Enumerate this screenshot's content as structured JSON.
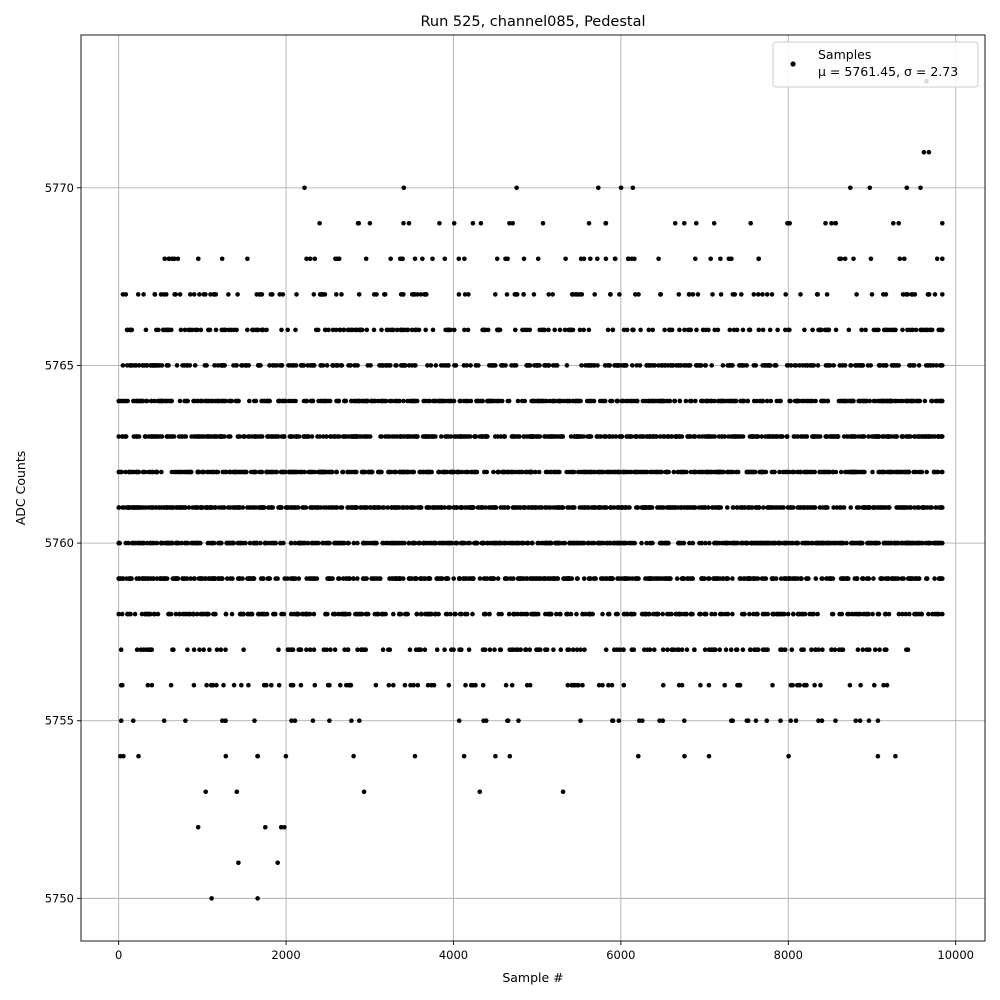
{
  "chart_data": {
    "type": "scatter",
    "title": "Run 525, channel085, Pedestal",
    "xlabel": "Sample #",
    "ylabel": "ADC Counts",
    "xlim": [
      -450,
      10350
    ],
    "ylim": [
      5748.8,
      5774.3
    ],
    "xticks": [
      0,
      2000,
      4000,
      6000,
      8000,
      10000
    ],
    "yticks": [
      5750,
      5755,
      5760,
      5765,
      5770
    ],
    "grid": true,
    "legend": {
      "placement": "top-right",
      "entries": [
        {
          "name": "Samples",
          "stats": "μ = 5761.45, σ = 2.73"
        }
      ]
    },
    "series": [
      {
        "name": "Samples",
        "color": "#000000",
        "marker": "circle",
        "n_samples": 9850,
        "level_ranges": [
          {
            "y": 5750,
            "x": [
              1110,
              1660
            ]
          },
          {
            "y": 5751,
            "x": [
              1430,
              1900
            ]
          },
          {
            "y": 5752,
            "x": [
              950,
              1980
            ]
          },
          {
            "y": 5753,
            "x": [
              1040,
              5310
            ]
          },
          {
            "y": 5754,
            "x": [
              20,
              9280
            ]
          },
          {
            "y": 5755,
            "x": [
              30,
              9070
            ]
          },
          {
            "y": 5756,
            "x": [
              30,
              9180
            ]
          },
          {
            "y": 5757,
            "x": [
              30,
              9430
            ]
          },
          {
            "y": 5758,
            "x": [
              0,
              9840
            ]
          },
          {
            "y": 5759,
            "x": [
              0,
              9840
            ]
          },
          {
            "y": 5760,
            "x": [
              0,
              9840
            ]
          },
          {
            "y": 5761,
            "x": [
              0,
              9840
            ]
          },
          {
            "y": 5762,
            "x": [
              0,
              9840
            ]
          },
          {
            "y": 5763,
            "x": [
              0,
              9840
            ]
          },
          {
            "y": 5764,
            "x": [
              0,
              9840
            ]
          },
          {
            "y": 5765,
            "x": [
              50,
              9840
            ]
          },
          {
            "y": 5766,
            "x": [
              100,
              9840
            ]
          },
          {
            "y": 5767,
            "x": [
              50,
              9840
            ]
          },
          {
            "y": 5768,
            "x": [
              550,
              9840
            ]
          },
          {
            "y": 5769,
            "x": [
              2400,
              9840
            ]
          },
          {
            "y": 5770,
            "x": [
              2220,
              9580
            ]
          },
          {
            "y": 5771,
            "x": [
              9620,
              9680
            ]
          },
          {
            "y": 5773,
            "x": [
              9650,
              9650
            ]
          }
        ]
      }
    ]
  }
}
